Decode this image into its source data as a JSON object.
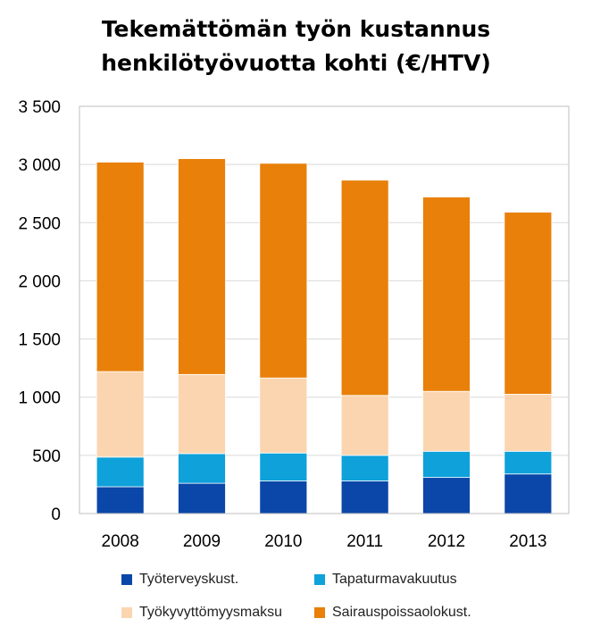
{
  "chart_data": {
    "type": "bar",
    "stacked": true,
    "title_lines": [
      "Tekemättömän työn kustannus",
      "henkilötyövuotta kohti (€/HTV)"
    ],
    "categories": [
      "2008",
      "2009",
      "2010",
      "2011",
      "2012",
      "2013"
    ],
    "series": [
      {
        "name": "Työterveyskust.",
        "color": "#0b47a8",
        "values": [
          230,
          260,
          280,
          280,
          310,
          340
        ]
      },
      {
        "name": "Tapaturmavakuutus",
        "color": "#0ea1da",
        "values": [
          255,
          255,
          240,
          220,
          225,
          195
        ]
      },
      {
        "name": "Työkyvyttömyysmaksu",
        "color": "#fbd5b0",
        "values": [
          735,
          680,
          645,
          515,
          515,
          490
        ]
      },
      {
        "name": "Sairauspoissaolokust.",
        "color": "#e8800a",
        "values": [
          1800,
          1855,
          1845,
          1850,
          1670,
          1565
        ]
      }
    ],
    "y_ticks": [
      "0",
      "500",
      "1 000",
      "1 500",
      "2 000",
      "2 500",
      "3 000",
      "3 500"
    ],
    "ylim": [
      0,
      3500
    ],
    "grid": true,
    "legend_position": "bottom"
  }
}
